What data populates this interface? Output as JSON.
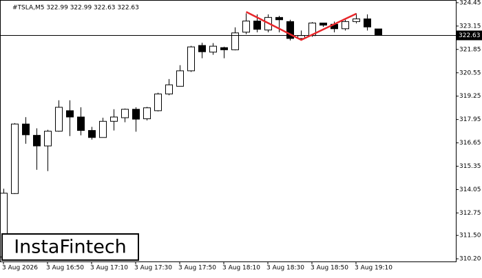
{
  "chart_data": {
    "type": "candlestick",
    "title": "#TSLA,M5  322.99 322.99 322.63 322.63",
    "logo": "InstaFintech",
    "categories": [
      "3 Aug 2026",
      null,
      null,
      null,
      "3 Aug 16:50",
      null,
      null,
      null,
      "3 Aug 17:10",
      null,
      null,
      null,
      "3 Aug 17:30",
      null,
      null,
      null,
      "3 Aug 17:50",
      null,
      null,
      null,
      "3 Aug 18:10",
      null,
      null,
      null,
      "3 Aug 18:30",
      null,
      null,
      null,
      "3 Aug 18:50",
      null,
      null,
      null,
      "3 Aug 19:10",
      null,
      null
    ],
    "open": [
      310.3,
      313.83,
      317.7,
      317.07,
      316.48,
      317.3,
      318.44,
      318.09,
      317.34,
      316.95,
      317.85,
      318.05,
      318.52,
      317.99,
      318.44,
      319.37,
      319.8,
      320.66,
      322.07,
      321.7,
      321.95,
      321.83,
      322.81,
      323.43,
      322.93,
      323.63,
      323.4,
      322.46,
      322.62,
      323.32,
      323.25,
      323.0,
      323.4,
      323.55,
      322.99
    ],
    "high": [
      314.1,
      317.75,
      318.08,
      317.46,
      317.38,
      319.02,
      319.02,
      318.63,
      317.54,
      318.05,
      318.52,
      318.56,
      318.63,
      318.65,
      319.44,
      320.2,
      320.97,
      322.05,
      322.22,
      322.2,
      322.0,
      323.08,
      323.86,
      323.8,
      323.8,
      323.72,
      323.5,
      322.9,
      323.37,
      323.32,
      323.4,
      323.5,
      323.86,
      323.8,
      322.99
    ],
    "low": [
      310.25,
      313.8,
      316.6,
      315.15,
      315.08,
      317.27,
      317.03,
      317.07,
      316.83,
      316.95,
      317.34,
      317.8,
      317.27,
      317.9,
      318.4,
      319.3,
      319.8,
      320.6,
      321.36,
      321.55,
      321.36,
      321.8,
      322.7,
      322.8,
      322.8,
      322.8,
      322.35,
      322.35,
      322.55,
      323.1,
      322.8,
      322.9,
      323.3,
      322.9,
      322.63
    ],
    "close": [
      313.85,
      317.7,
      317.1,
      316.48,
      317.3,
      318.63,
      318.09,
      317.34,
      316.95,
      317.85,
      318.09,
      318.52,
      317.97,
      318.6,
      319.37,
      319.88,
      320.66,
      321.99,
      321.72,
      322.03,
      321.83,
      322.77,
      323.43,
      322.97,
      323.63,
      323.5,
      322.46,
      322.62,
      323.32,
      323.2,
      323.0,
      323.4,
      323.55,
      323.1,
      322.63
    ],
    "up_color": "#ffffff",
    "down_color": "#000000",
    "last_price": 322.63,
    "pattern": {
      "color": "#e8262a",
      "x": [
        22,
        27,
        32
      ],
      "values": [
        323.94,
        322.38,
        323.84
      ]
    },
    "ylim": [
      310.05,
      324.6
    ],
    "yticks": [
      {
        "value": 310.2,
        "label": "310.20"
      },
      {
        "value": 311.5,
        "label": "311.50"
      },
      312.75,
      314.05,
      315.35,
      316.65,
      317.95,
      319.25,
      320.55,
      321.85,
      323.15,
      324.45
    ]
  }
}
